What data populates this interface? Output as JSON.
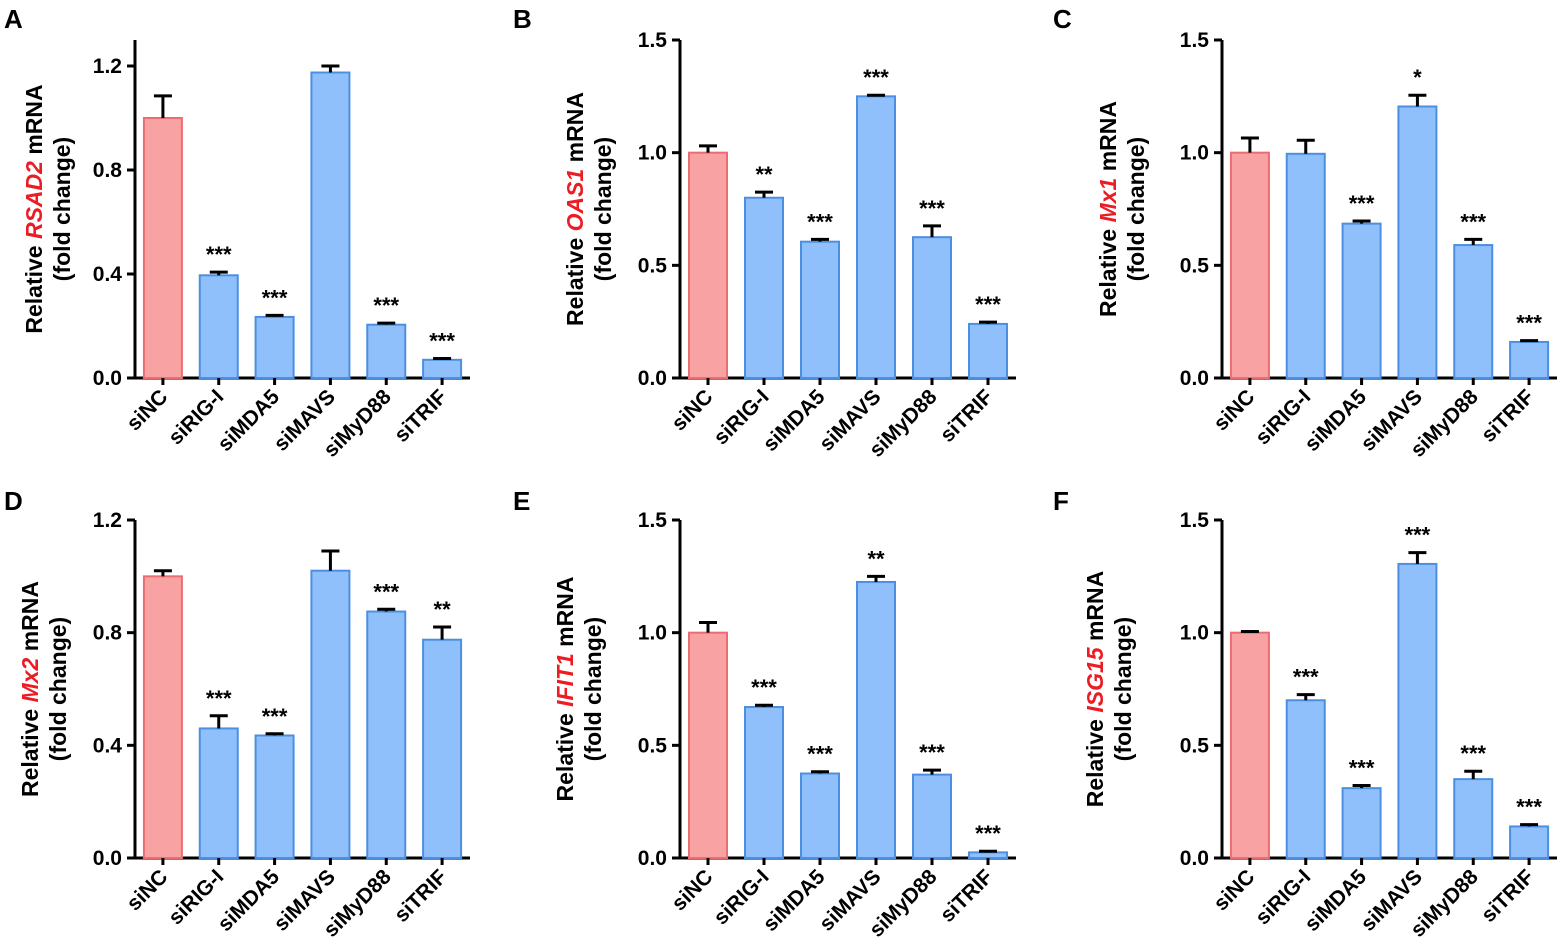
{
  "colors": {
    "control_fill": "#f9a2a3",
    "control_stroke": "#ea6d71",
    "treatment_fill": "#8fc0fb",
    "treatment_stroke": "#4c8fe2",
    "gene_text": "#ec1c24",
    "axis": "#000000"
  },
  "chart_data": [
    {
      "type": "bar",
      "panel": "A",
      "ylabel": {
        "prefix": "Relative ",
        "gene": "RSAD2",
        "suffix": " mRNA",
        "line2": "(fold change)"
      },
      "categories": [
        "siNC",
        "siRIG-I",
        "siMDA5",
        "siMAVS",
        "siMyD88",
        "siTRIF"
      ],
      "values": [
        1.0,
        0.395,
        0.235,
        1.175,
        0.205,
        0.07
      ],
      "errors": [
        0.085,
        0.012,
        0.006,
        0.025,
        0.006,
        0.005
      ],
      "significance": [
        "",
        "***",
        "***",
        "",
        "***",
        "***"
      ],
      "ylim": [
        0,
        1.3
      ],
      "yticks": [
        0.0,
        0.4,
        0.8,
        1.2
      ],
      "ytick_labels": [
        "0.0",
        "0.4",
        "0.8",
        "1.2"
      ]
    },
    {
      "type": "bar",
      "panel": "B",
      "ylabel": {
        "prefix": "Relative ",
        "gene": "OAS1",
        "suffix": " mRNA",
        "line2": "(fold change)"
      },
      "categories": [
        "siNC",
        "siRIG-I",
        "siMDA5",
        "siMAVS",
        "siMyD88",
        "siTRIF"
      ],
      "values": [
        1.0,
        0.8,
        0.605,
        1.25,
        0.625,
        0.24
      ],
      "errors": [
        0.03,
        0.025,
        0.01,
        0.005,
        0.05,
        0.008
      ],
      "significance": [
        "",
        "**",
        "***",
        "***",
        "***",
        "***"
      ],
      "ylim": [
        0,
        1.5
      ],
      "yticks": [
        0.0,
        0.5,
        1.0,
        1.5
      ],
      "ytick_labels": [
        "0.0",
        "0.5",
        "1.0",
        "1.5"
      ]
    },
    {
      "type": "bar",
      "panel": "C",
      "ylabel": {
        "prefix": "Relative ",
        "gene": "Mx1",
        "suffix": " mRNA",
        "line2": "(fold change)"
      },
      "categories": [
        "siNC",
        "siRIG-I",
        "siMDA5",
        "siMAVS",
        "siMyD88",
        "siTRIF"
      ],
      "values": [
        1.0,
        0.995,
        0.685,
        1.205,
        0.59,
        0.16
      ],
      "errors": [
        0.065,
        0.06,
        0.012,
        0.05,
        0.025,
        0.006
      ],
      "significance": [
        "",
        "",
        "***",
        "*",
        "***",
        "***"
      ],
      "ylim": [
        0,
        1.5
      ],
      "yticks": [
        0.0,
        0.5,
        1.0,
        1.5
      ],
      "ytick_labels": [
        "0.0",
        "0.5",
        "1.0",
        "1.5"
      ]
    },
    {
      "type": "bar",
      "panel": "D",
      "ylabel": {
        "prefix": "Relative ",
        "gene": "Mx2",
        "suffix": " mRNA",
        "line2": "(fold change)"
      },
      "categories": [
        "siNC",
        "siRIG-I",
        "siMDA5",
        "siMAVS",
        "siMyD88",
        "siTRIF"
      ],
      "values": [
        1.0,
        0.46,
        0.435,
        1.02,
        0.875,
        0.775
      ],
      "errors": [
        0.02,
        0.045,
        0.006,
        0.07,
        0.008,
        0.045
      ],
      "significance": [
        "",
        "***",
        "***",
        "",
        "***",
        "**"
      ],
      "ylim": [
        0,
        1.2
      ],
      "yticks": [
        0.0,
        0.4,
        0.8,
        1.2
      ],
      "ytick_labels": [
        "0.0",
        "0.4",
        "0.8",
        "1.2"
      ]
    },
    {
      "type": "bar",
      "panel": "E",
      "ylabel": {
        "prefix": "Relative ",
        "gene": "IFIT1",
        "suffix": " mRNA",
        "line2": "(fold change)"
      },
      "categories": [
        "siNC",
        "siRIG-I",
        "siMDA5",
        "siMAVS",
        "siMyD88",
        "siTRIF"
      ],
      "values": [
        1.0,
        0.67,
        0.375,
        1.225,
        0.37,
        0.025
      ],
      "errors": [
        0.045,
        0.008,
        0.008,
        0.025,
        0.02,
        0.005
      ],
      "significance": [
        "",
        "***",
        "***",
        "**",
        "***",
        "***"
      ],
      "ylim": [
        0,
        1.5
      ],
      "yticks": [
        0.0,
        0.5,
        1.0,
        1.5
      ],
      "ytick_labels": [
        "0.0",
        "0.5",
        "1.0",
        "1.5"
      ]
    },
    {
      "type": "bar",
      "panel": "F",
      "ylabel": {
        "prefix": "Relative ",
        "gene": "ISG15",
        "suffix": " mRNA",
        "line2": "(fold change)"
      },
      "categories": [
        "siNC",
        "siRIG-I",
        "siMDA5",
        "siMAVS",
        "siMyD88",
        "siTRIF"
      ],
      "values": [
        1.0,
        0.7,
        0.31,
        1.305,
        0.35,
        0.14
      ],
      "errors": [
        0.005,
        0.025,
        0.012,
        0.05,
        0.035,
        0.008
      ],
      "significance": [
        "",
        "***",
        "***",
        "***",
        "***",
        "***"
      ],
      "ylim": [
        0,
        1.5
      ],
      "yticks": [
        0.0,
        0.5,
        1.0,
        1.5
      ],
      "ytick_labels": [
        "0.0",
        "0.5",
        "1.0",
        "1.5"
      ]
    }
  ]
}
